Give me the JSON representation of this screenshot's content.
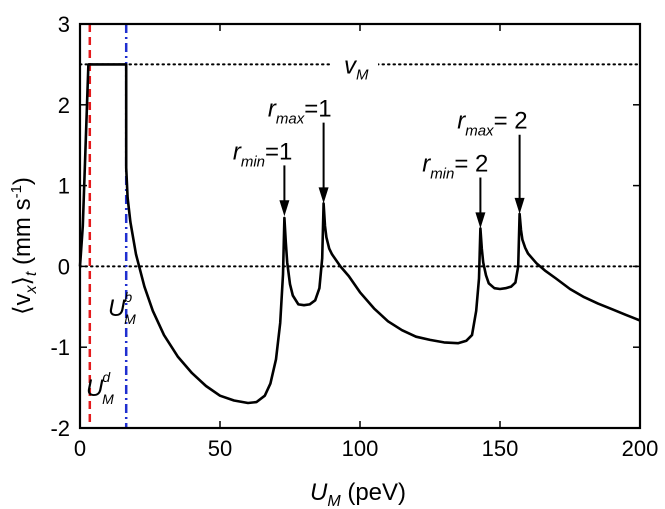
{
  "chart_data": {
    "type": "line",
    "xlabel": {
      "main": "U",
      "sub": "M",
      "unit": " (peV)"
    },
    "ylabel": {
      "open": "⟨v",
      "sub1": "x",
      "close": "⟩",
      "sub2": "t",
      "unit": " (mm s",
      "sup": "-1",
      "end": ")"
    },
    "xlim": [
      0,
      200
    ],
    "ylim": [
      -2,
      3
    ],
    "xticks": [
      0,
      50,
      100,
      150,
      200
    ],
    "xtick_labels": [
      "0",
      "50",
      "100",
      "150",
      "200"
    ],
    "yticks": [
      -2,
      -1,
      0,
      1,
      2,
      3
    ],
    "ytick_labels": [
      "-2",
      "-1",
      "0",
      "1",
      "2",
      "3"
    ],
    "grid": false,
    "reference_lines": {
      "vM": {
        "y": 2.5,
        "style": "dotted",
        "color": "#000000",
        "label_main": "v",
        "label_sub": "M"
      },
      "zero": {
        "y": 0,
        "style": "dotted",
        "color": "#000000"
      },
      "UMd": {
        "x": 3.5,
        "style": "dashed",
        "color": "#e41a1c",
        "label_main": "U",
        "label_sub": "M",
        "label_sup": "d"
      },
      "UMb": {
        "x": 16.5,
        "style": "dash-dot",
        "color": "#1f2fd0",
        "label_main": "U",
        "label_sub": "M",
        "label_sup": "b"
      }
    },
    "annotations": [
      {
        "main": "r",
        "sub": "min",
        "rest": "=1",
        "arrow_x": 73,
        "arrow_y_top": 1.25,
        "arrow_y_bottom": 0.62
      },
      {
        "main": "r",
        "sub": "max",
        "rest": "=1",
        "arrow_x": 87,
        "arrow_y_top": 1.78,
        "arrow_y_bottom": 0.78
      },
      {
        "main": "r",
        "sub": "min",
        "rest": "= 2",
        "arrow_x": 143,
        "arrow_y_top": 1.1,
        "arrow_y_bottom": 0.47
      },
      {
        "main": "r",
        "sub": "max",
        "rest": "= 2",
        "arrow_x": 157,
        "arrow_y_top": 1.63,
        "arrow_y_bottom": 0.65
      }
    ],
    "series": [
      {
        "color": "#000000",
        "x": [
          0,
          1,
          2.5,
          3,
          3.2,
          16.5,
          16.5,
          17,
          18,
          20,
          23,
          26,
          30,
          35,
          40,
          45,
          50,
          55,
          60,
          63,
          66,
          68,
          70,
          71.5,
          72.5,
          73,
          73.5,
          74,
          75,
          76,
          78,
          80,
          82,
          84,
          85.5,
          86.5,
          87,
          87.5,
          88,
          89,
          90,
          93,
          96,
          100,
          105,
          110,
          115,
          120,
          125,
          130,
          135,
          138,
          140,
          141.5,
          142.5,
          143,
          143.5,
          144,
          145,
          146,
          148,
          150,
          152,
          154,
          155.5,
          156.5,
          157,
          157.5,
          158,
          159,
          160,
          163,
          166,
          170,
          175,
          180,
          185,
          190,
          195,
          200
        ],
        "y": [
          0,
          0.5,
          2.0,
          2.5,
          2.5,
          2.5,
          1.22,
          0.85,
          0.55,
          0.15,
          -0.25,
          -0.55,
          -0.85,
          -1.12,
          -1.32,
          -1.48,
          -1.6,
          -1.66,
          -1.69,
          -1.68,
          -1.6,
          -1.45,
          -1.15,
          -0.7,
          -0.1,
          0.6,
          0.3,
          0.05,
          -0.22,
          -0.36,
          -0.47,
          -0.48,
          -0.47,
          -0.42,
          -0.27,
          0.1,
          0.78,
          0.5,
          0.36,
          0.22,
          0.15,
          0.0,
          -0.12,
          -0.32,
          -0.52,
          -0.68,
          -0.79,
          -0.87,
          -0.91,
          -0.94,
          -0.95,
          -0.92,
          -0.85,
          -0.55,
          -0.15,
          0.47,
          0.22,
          0.05,
          -0.11,
          -0.21,
          -0.27,
          -0.28,
          -0.27,
          -0.25,
          -0.2,
          0.0,
          0.65,
          0.45,
          0.33,
          0.23,
          0.16,
          0.04,
          -0.05,
          -0.15,
          -0.28,
          -0.38,
          -0.46,
          -0.53,
          -0.6,
          -0.67
        ]
      }
    ]
  }
}
